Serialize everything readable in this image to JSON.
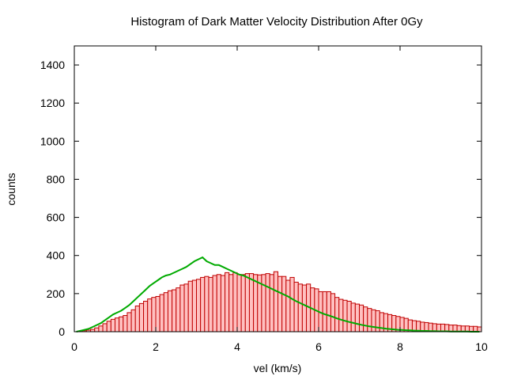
{
  "chart_data": {
    "type": "bar",
    "title": "Histogram of Dark Matter Velocity Distribution After 0Gy",
    "xlabel": "vel (km/s)",
    "ylabel": "counts",
    "xlim": [
      0,
      10
    ],
    "ylim": [
      0,
      1500
    ],
    "x_ticks": [
      0,
      2,
      4,
      6,
      8,
      10
    ],
    "y_ticks": [
      0,
      200,
      400,
      600,
      800,
      1000,
      1200,
      1400
    ],
    "grid": false,
    "bin_width": 0.1,
    "colors": {
      "bar_fill": "#ffc0c0",
      "bar_edge": "#c00000",
      "curve": "#00aa00"
    },
    "series": [
      {
        "values": [
          0,
          0,
          5,
          8,
          12,
          20,
          30,
          42,
          55,
          65,
          72,
          78,
          85,
          100,
          115,
          135,
          148,
          160,
          172,
          180,
          185,
          195,
          205,
          215,
          220,
          230,
          245,
          250,
          265,
          270,
          275,
          285,
          290,
          285,
          295,
          300,
          295,
          310,
          300,
          310,
          300,
          300,
          305,
          305,
          300,
          298,
          300,
          305,
          300,
          315,
          290,
          290,
          270,
          285,
          260,
          250,
          245,
          250,
          230,
          225,
          210,
          210,
          210,
          200,
          180,
          170,
          165,
          160,
          150,
          145,
          140,
          130,
          122,
          115,
          110,
          100,
          95,
          90,
          85,
          80,
          75,
          70,
          62,
          58,
          55,
          50,
          48,
          45,
          42,
          40,
          40,
          38,
          35,
          35,
          32,
          30,
          30,
          28,
          28,
          25
        ]
      },
      {
        "values": [
          0,
          5,
          10,
          15,
          25,
          35,
          45,
          60,
          75,
          90,
          100,
          110,
          125,
          140,
          160,
          180,
          200,
          220,
          240,
          255,
          270,
          285,
          295,
          300,
          310,
          320,
          330,
          340,
          355,
          370,
          380,
          390,
          370,
          360,
          350,
          350,
          340,
          330,
          320,
          310,
          300,
          295,
          285,
          275,
          265,
          255,
          245,
          235,
          225,
          215,
          205,
          195,
          185,
          172,
          160,
          150,
          140,
          130,
          120,
          110,
          100,
          92,
          85,
          78,
          70,
          63,
          57,
          51,
          46,
          41,
          36,
          32,
          28,
          25,
          22,
          19,
          16,
          14,
          12,
          10,
          9,
          8,
          7,
          6,
          5,
          4,
          4,
          3,
          3,
          2,
          2,
          2,
          1,
          1,
          1,
          1,
          1,
          0,
          0,
          0
        ]
      }
    ]
  }
}
